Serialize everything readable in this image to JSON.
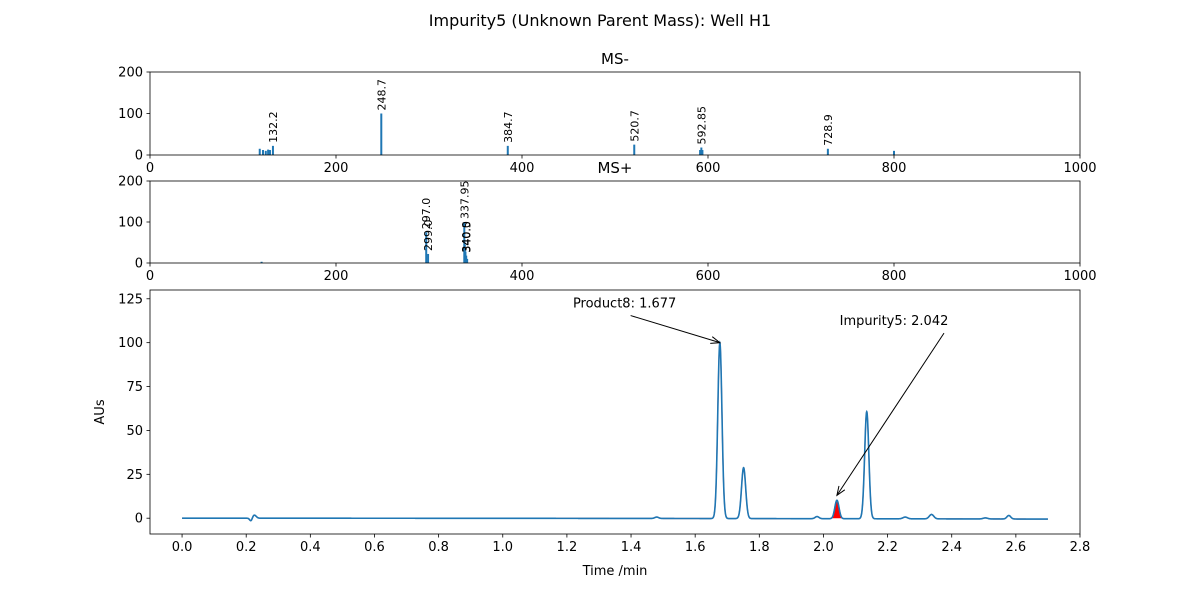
{
  "figure": {
    "title": "Impurity5 (Unknown Parent Mass): Well H1"
  },
  "chart_data": [
    {
      "type": "bar",
      "title": "MS-",
      "xlim": [
        0,
        1000
      ],
      "ylim": [
        0,
        200
      ],
      "xticks": [
        0,
        200,
        400,
        600,
        800,
        1000
      ],
      "yticks": [
        0,
        100,
        200
      ],
      "color": "#1f77b4",
      "peaks": [
        {
          "x": 118.0,
          "y": 15
        },
        {
          "x": 121.5,
          "y": 12
        },
        {
          "x": 124.5,
          "y": 10
        },
        {
          "x": 127.0,
          "y": 13
        },
        {
          "x": 129.0,
          "y": 12
        },
        {
          "x": 132.2,
          "y": 22
        },
        {
          "x": 248.7,
          "y": 100
        },
        {
          "x": 384.7,
          "y": 22
        },
        {
          "x": 520.7,
          "y": 25
        },
        {
          "x": 591.5,
          "y": 12
        },
        {
          "x": 592.85,
          "y": 18
        },
        {
          "x": 594.0,
          "y": 12
        },
        {
          "x": 728.9,
          "y": 15
        },
        {
          "x": 800.0,
          "y": 10
        }
      ],
      "labels": [
        {
          "text": "132.2",
          "x": 132.2,
          "y": 22
        },
        {
          "text": "248.7",
          "x": 248.7,
          "y": 100
        },
        {
          "text": "384.7",
          "x": 384.7,
          "y": 22
        },
        {
          "text": "520.7",
          "x": 520.7,
          "y": 25
        },
        {
          "text": "592.85",
          "x": 592.85,
          "y": 18
        },
        {
          "text": "728.9",
          "x": 728.9,
          "y": 15
        }
      ]
    },
    {
      "type": "bar",
      "title": "MS+",
      "xlim": [
        0,
        1000
      ],
      "ylim": [
        0,
        200
      ],
      "xticks": [
        0,
        200,
        400,
        600,
        800,
        1000
      ],
      "yticks": [
        0,
        100,
        200
      ],
      "color": "#1f77b4",
      "peaks": [
        {
          "x": 120.0,
          "y": 3
        },
        {
          "x": 297.0,
          "y": 75
        },
        {
          "x": 299.0,
          "y": 22
        },
        {
          "x": 337.95,
          "y": 100
        },
        {
          "x": 338.5,
          "y": 45
        },
        {
          "x": 339.2,
          "y": 28
        },
        {
          "x": 340.0,
          "y": 18
        },
        {
          "x": 341.0,
          "y": 10
        }
      ],
      "labels": [
        {
          "text": "297.0",
          "x": 297.0,
          "y": 75
        },
        {
          "text": "299.0",
          "x": 299.0,
          "y": 22
        },
        {
          "text": "337.95",
          "x": 337.95,
          "y": 100
        },
        {
          "text": "340.0",
          "x": 340.0,
          "y": 18
        },
        {
          "text": "340.5",
          "x": 340.5,
          "y": 18
        }
      ]
    },
    {
      "type": "line",
      "xlabel": "Time /min",
      "ylabel": "AUs",
      "xlim": [
        -0.1,
        2.8
      ],
      "ylim": [
        -9,
        130
      ],
      "xticks": [
        0.0,
        0.2,
        0.4,
        0.6,
        0.8,
        1.0,
        1.2,
        1.4,
        1.6,
        1.8,
        2.0,
        2.2,
        2.4,
        2.6,
        2.8
      ],
      "xtick_labels": [
        "0.0",
        "0.2",
        "0.4",
        "0.6",
        "0.8",
        "1.0",
        "1.2",
        "1.4",
        "1.6",
        "1.8",
        "2.0",
        "2.2",
        "2.4",
        "2.6",
        "2.8"
      ],
      "yticks": [
        0,
        25,
        50,
        75,
        100,
        125
      ],
      "x_range": [
        0.0,
        2.7
      ],
      "baseline": 0,
      "baseline_end": -0.5,
      "series": [
        {
          "color": "#1f77b4",
          "peaks": [
            {
              "t": 0.215,
              "h": -1.8,
              "w": 0.004
            },
            {
              "t": 0.225,
              "h": 1.8,
              "w": 0.006
            },
            {
              "t": 1.48,
              "h": 0.8,
              "w": 0.006
            },
            {
              "t": 1.677,
              "h": 100,
              "w": 0.0065
            },
            {
              "t": 1.751,
              "h": 29,
              "w": 0.0065
            },
            {
              "t": 1.98,
              "h": 1.2,
              "w": 0.006
            },
            {
              "t": 2.042,
              "h": 10.5,
              "w": 0.0065
            },
            {
              "t": 2.135,
              "h": 61,
              "w": 0.0065
            },
            {
              "t": 2.255,
              "h": 1.0,
              "w": 0.007
            },
            {
              "t": 2.337,
              "h": 2.5,
              "w": 0.007
            },
            {
              "t": 2.505,
              "h": 0.6,
              "w": 0.007
            },
            {
              "t": 2.578,
              "h": 2.0,
              "w": 0.006
            }
          ]
        }
      ],
      "fill": {
        "color": "#ff0000",
        "x0": 2.025,
        "x1": 2.06
      },
      "annotations": [
        {
          "text": "Product8: 1.677",
          "point": [
            1.677,
            100
          ],
          "text_pos": [
            1.38,
            120
          ]
        },
        {
          "text": "Impurity5: 2.042",
          "point": [
            2.042,
            13
          ],
          "text_pos": [
            2.22,
            110
          ]
        }
      ]
    }
  ]
}
